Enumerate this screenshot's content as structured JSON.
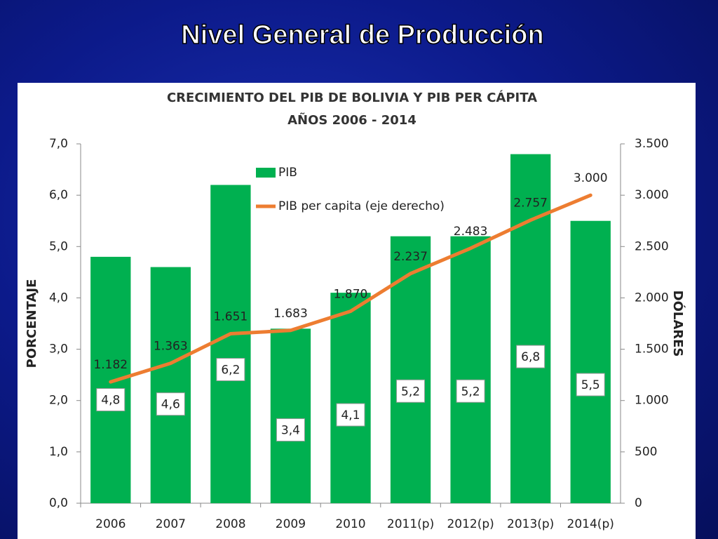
{
  "slide_title": "Nivel General de Producción",
  "chart_data": {
    "type": "bar",
    "title": "CRECIMIENTO DEL PIB DE BOLIVIA Y PIB PER CÁPITA",
    "subtitle": "AÑOS 2006 - 2014",
    "ylabel": "PORCENTAJE",
    "y2label": "DÓLARES",
    "categories": [
      "2006",
      "2007",
      "2008",
      "2009",
      "2010",
      "2011(p)",
      "2012(p)",
      "2013(p)",
      "2014(p)"
    ],
    "series": [
      {
        "name": "PIB",
        "type": "bar",
        "color": "#00b050",
        "values": [
          4.8,
          4.6,
          6.2,
          3.4,
          4.1,
          5.2,
          5.2,
          6.8,
          5.5
        ],
        "value_labels": [
          "4,8",
          "4,6",
          "6,2",
          "3,4",
          "4,1",
          "5,2",
          "5,2",
          "6,8",
          "5,5"
        ]
      },
      {
        "name": "PIB per capita (eje derecho)",
        "type": "line",
        "axis": "y2",
        "color": "#ed7d31",
        "values": [
          1182,
          1363,
          1651,
          1683,
          1870,
          2237,
          2483,
          2757,
          3000
        ],
        "value_labels": [
          "1.182",
          "1.363",
          "1.651",
          "1.683",
          "1.870",
          "2.237",
          "2.483",
          "2.757",
          "3.000"
        ]
      }
    ],
    "ylim": [
      0,
      7
    ],
    "yticks": [
      {
        "value": 0,
        "label": "0,0"
      },
      {
        "value": 1,
        "label": "1,0"
      },
      {
        "value": 2,
        "label": "2,0"
      },
      {
        "value": 3,
        "label": "3,0"
      },
      {
        "value": 4,
        "label": "4,0"
      },
      {
        "value": 5,
        "label": "5,0"
      },
      {
        "value": 6,
        "label": "6,0"
      },
      {
        "value": 7,
        "label": "7,0"
      }
    ],
    "y2lim": [
      0,
      3500
    ],
    "y2ticks": [
      0,
      500,
      {
        "value": 1000,
        "label": "1.000"
      },
      {
        "value": 1500,
        "label": "1.500"
      },
      {
        "value": 2000,
        "label": "2.000"
      },
      {
        "value": 2500,
        "label": "2.500"
      },
      {
        "value": 3000,
        "label": "3.000"
      },
      {
        "value": 3500,
        "label": "3.500"
      }
    ],
    "legend": "upper left"
  }
}
